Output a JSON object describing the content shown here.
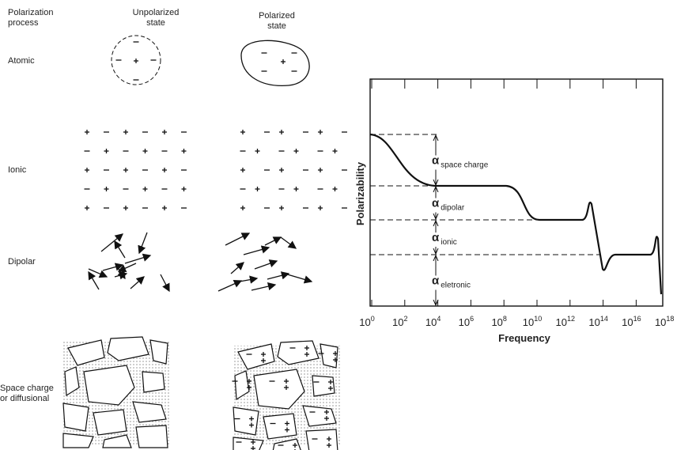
{
  "diagram": {
    "column_headers": {
      "process": [
        "Polarization",
        "process"
      ],
      "unpolarized": [
        "Unpolarized",
        "state"
      ],
      "polarized": [
        "Polarized",
        "state"
      ]
    },
    "rows": [
      {
        "label": [
          "Atomic"
        ]
      },
      {
        "label": [
          "Ionic"
        ]
      },
      {
        "label": [
          "Dipolar"
        ]
      },
      {
        "label": [
          "Space charge",
          "or diffusional"
        ]
      }
    ]
  },
  "graph": {
    "y_label": "Polarizability",
    "x_label": "Frequency",
    "x_ticks": [
      {
        "base": "10",
        "exp": "0"
      },
      {
        "base": "10",
        "exp": "2"
      },
      {
        "base": "10",
        "exp": "4"
      },
      {
        "base": "10",
        "exp": "6"
      },
      {
        "base": "10",
        "exp": "8"
      },
      {
        "base": "10",
        "exp": "10"
      },
      {
        "base": "10",
        "exp": "12"
      },
      {
        "base": "10",
        "exp": "14"
      },
      {
        "base": "10",
        "exp": "16"
      },
      {
        "base": "10",
        "exp": "18"
      }
    ],
    "alpha_labels": [
      {
        "symbol": "α",
        "subscript": "space charge"
      },
      {
        "symbol": "α",
        "subscript": "dipolar"
      },
      {
        "symbol": "α",
        "subscript": "ionic"
      },
      {
        "symbol": "α",
        "subscript": "eletronic"
      }
    ]
  }
}
